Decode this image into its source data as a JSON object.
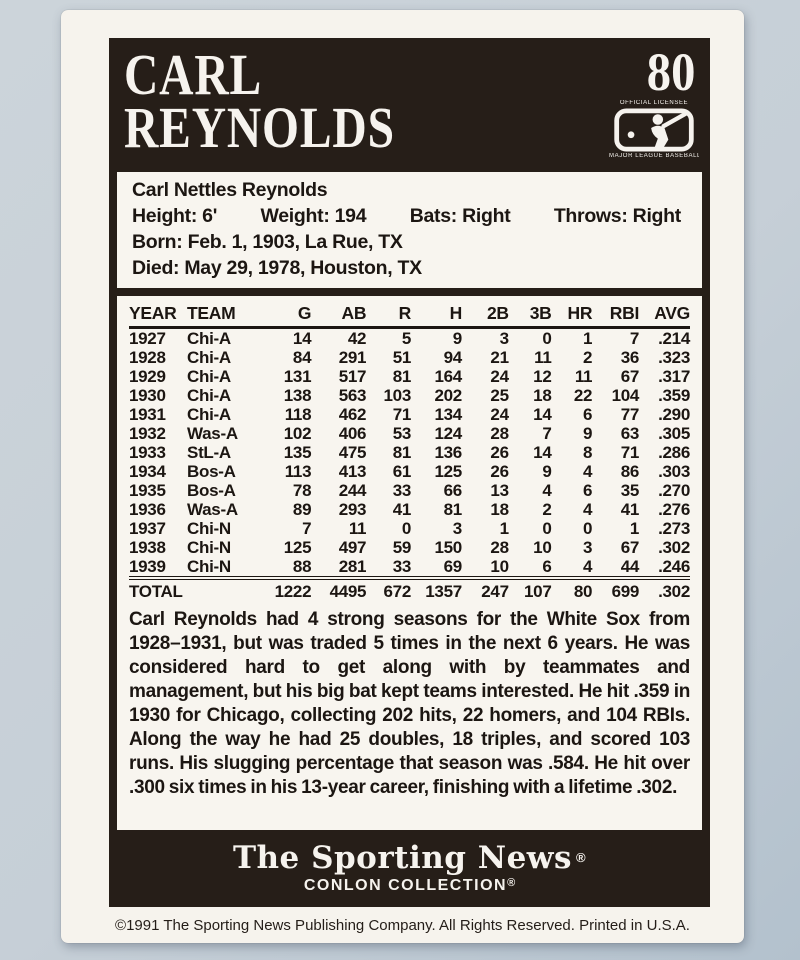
{
  "card": {
    "number": "80",
    "name_line1": "CARL",
    "name_line2": "REYNOLDS"
  },
  "mlb_logo": {
    "top_text": "OFFICIAL LICENSEE",
    "bottom_text": "MAJOR LEAGUE BASEBALL"
  },
  "bio": {
    "full_name": "Carl Nettles Reynolds",
    "stats_line": [
      "Height: 6'",
      "Weight: 194",
      "Bats: Right",
      "Throws: Right"
    ],
    "born": "Born: Feb. 1, 1903, La Rue, TX",
    "died": "Died: May 29, 1978, Houston, TX"
  },
  "stats": {
    "columns": [
      "YEAR",
      "TEAM",
      "G",
      "AB",
      "R",
      "H",
      "2B",
      "3B",
      "HR",
      "RBI",
      "AVG"
    ],
    "rows": [
      [
        "1927",
        "Chi-A",
        "14",
        "42",
        "5",
        "9",
        "3",
        "0",
        "1",
        "7",
        ".214"
      ],
      [
        "1928",
        "Chi-A",
        "84",
        "291",
        "51",
        "94",
        "21",
        "11",
        "2",
        "36",
        ".323"
      ],
      [
        "1929",
        "Chi-A",
        "131",
        "517",
        "81",
        "164",
        "24",
        "12",
        "11",
        "67",
        ".317"
      ],
      [
        "1930",
        "Chi-A",
        "138",
        "563",
        "103",
        "202",
        "25",
        "18",
        "22",
        "104",
        ".359"
      ],
      [
        "1931",
        "Chi-A",
        "118",
        "462",
        "71",
        "134",
        "24",
        "14",
        "6",
        "77",
        ".290"
      ],
      [
        "1932",
        "Was-A",
        "102",
        "406",
        "53",
        "124",
        "28",
        "7",
        "9",
        "63",
        ".305"
      ],
      [
        "1933",
        "StL-A",
        "135",
        "475",
        "81",
        "136",
        "26",
        "14",
        "8",
        "71",
        ".286"
      ],
      [
        "1934",
        "Bos-A",
        "113",
        "413",
        "61",
        "125",
        "26",
        "9",
        "4",
        "86",
        ".303"
      ],
      [
        "1935",
        "Bos-A",
        "78",
        "244",
        "33",
        "66",
        "13",
        "4",
        "6",
        "35",
        ".270"
      ],
      [
        "1936",
        "Was-A",
        "89",
        "293",
        "41",
        "81",
        "18",
        "2",
        "4",
        "41",
        ".276"
      ],
      [
        "1937",
        "Chi-N",
        "7",
        "11",
        "0",
        "3",
        "1",
        "0",
        "0",
        "1",
        ".273"
      ],
      [
        "1938",
        "Chi-N",
        "125",
        "497",
        "59",
        "150",
        "28",
        "10",
        "3",
        "67",
        ".302"
      ],
      [
        "1939",
        "Chi-N",
        "88",
        "281",
        "33",
        "69",
        "10",
        "6",
        "4",
        "44",
        ".246"
      ]
    ],
    "total": [
      "TOTAL",
      "",
      "1222",
      "4495",
      "672",
      "1357",
      "247",
      "107",
      "80",
      "699",
      ".302"
    ]
  },
  "biography": "Carl Reynolds had 4 strong seasons for the White Sox from 1928–1931, but was traded 5 times in the next 6 years. He was considered hard to get along with by teammates and management, but his big bat kept teams interested. He hit .359 in 1930 for Chicago, collecting 202 hits, 22 homers, and 104 RBIs. Along the way he had 25 doubles, 18 triples, and scored 103 runs. His slugging percentage that season was .584. He hit over .300 six times in his 13-year career, finishing with a lifetime .302.",
  "footer": {
    "brand": "The Sporting News",
    "brand_reg": "®",
    "collection": "CONLON COLLECTION",
    "collection_reg": "®"
  },
  "copyright": "©1991 The Sporting News Publishing Company. All Rights Reserved. Printed in U.S.A.",
  "colors": {
    "background": "#c6cfd7",
    "card_white": "#f6f3ed",
    "ink_black": "#261e18"
  }
}
